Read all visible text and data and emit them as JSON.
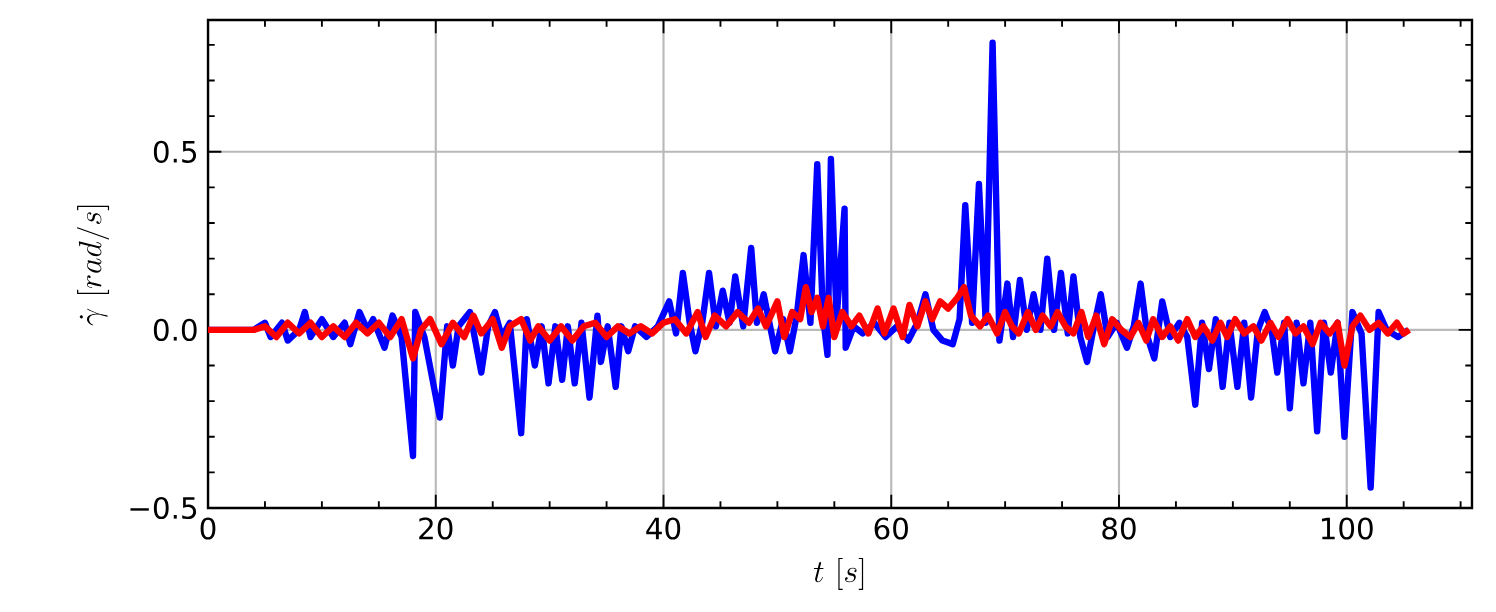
{
  "chart_data": {
    "type": "line",
    "xlabel": "t\\ [s]",
    "ylabel": "\\dot{\\gamma}\\ [rad/s]",
    "xlim": [
      0,
      111
    ],
    "ylim": [
      -0.5,
      0.87
    ],
    "xticks": [
      0,
      {
        "value": 5,
        "label": null
      },
      {
        "value": 10,
        "label": null
      },
      {
        "value": 15,
        "label": null
      },
      20,
      {
        "value": 25,
        "label": null
      },
      {
        "value": 30,
        "label": null
      },
      {
        "value": 35,
        "label": null
      },
      40,
      {
        "value": 45,
        "label": null
      },
      {
        "value": 50,
        "label": null
      },
      {
        "value": 55,
        "label": null
      },
      60,
      {
        "value": 65,
        "label": null
      },
      {
        "value": 70,
        "label": null
      },
      {
        "value": 75,
        "label": null
      },
      80,
      {
        "value": 85,
        "label": null
      },
      {
        "value": 90,
        "label": null
      },
      {
        "value": 95,
        "label": null
      },
      100,
      {
        "value": 105,
        "label": null
      },
      {
        "value": 110,
        "label": null
      }
    ],
    "yticks": [
      {
        "value": -0.5,
        "label": "−0.5"
      },
      {
        "value": -0.4,
        "label": null
      },
      {
        "value": -0.3,
        "label": null
      },
      {
        "value": -0.2,
        "label": null
      },
      {
        "value": -0.1,
        "label": null
      },
      {
        "value": 0,
        "label": "0.0"
      },
      {
        "value": 0.1,
        "label": null
      },
      {
        "value": 0.2,
        "label": null
      },
      {
        "value": 0.3,
        "label": null
      },
      {
        "value": 0.4,
        "label": null
      },
      {
        "value": 0.5,
        "label": "0.5"
      },
      {
        "value": 0.6,
        "label": null
      },
      {
        "value": 0.7,
        "label": null
      },
      {
        "value": 0.8,
        "label": null
      }
    ],
    "grid": true,
    "marker": "none",
    "line_style": "solid",
    "series": [
      {
        "color": "#0000ff",
        "x": [
          0,
          4,
          5,
          5.5,
          6.5,
          7,
          8,
          8.5,
          9,
          10,
          11,
          12,
          12.5,
          13.3,
          14,
          14.5,
          15.5,
          16.2,
          17,
          18,
          18.2,
          19,
          20.35,
          21,
          21.5,
          22,
          23,
          24,
          24.6,
          25.2,
          25.8,
          26.5,
          27.5,
          28,
          28.7,
          29.3,
          29.9,
          30.5,
          31.1,
          31.6,
          32.2,
          32.8,
          33.5,
          34.2,
          34.5,
          35.1,
          35.8,
          36.3,
          36.9,
          37.5,
          38.5,
          39.5,
          40.5,
          41.1,
          41.7,
          42.3,
          42.8,
          43.4,
          44,
          44.6,
          45.2,
          45.8,
          46.3,
          47,
          47.7,
          48.2,
          48.8,
          49.3,
          49.8,
          50.5,
          51.1,
          51.7,
          52.3,
          52.9,
          53.5,
          54,
          54.4,
          54.7,
          55.2,
          55.9,
          56.0,
          56.7,
          57.5,
          58.5,
          59.5,
          60.5,
          61.5,
          62.3,
          63,
          63.7,
          64.5,
          65.4,
          66,
          66.5,
          67.1,
          67.7,
          68.3,
          68.9,
          69.5,
          70.2,
          70.7,
          71.3,
          71.9,
          72.5,
          73.1,
          73.7,
          74.3,
          74.9,
          75.5,
          76,
          76.6,
          77.2,
          77.8,
          78.4,
          79,
          79.8,
          80.7,
          81.3,
          81.9,
          82.5,
          83.1,
          83.8,
          84.5,
          85.3,
          86,
          86.7,
          87.3,
          87.9,
          88.5,
          89.1,
          89.7,
          90.4,
          91,
          91.6,
          92.2,
          92.8,
          93.4,
          93.9,
          94.5,
          95,
          95.6,
          96.2,
          96.8,
          97.4,
          98,
          98.6,
          99.2,
          99.8,
          100.5,
          101.3,
          102.1,
          102.8,
          103.5,
          104.5,
          105.4
        ],
        "values": [
          0,
          0,
          0.02,
          -0.02,
          0.02,
          -0.03,
          0,
          0.05,
          -0.02,
          0.03,
          -0.02,
          0.02,
          -0.04,
          0.05,
          0,
          0.03,
          -0.05,
          0.04,
          -0.02,
          -0.354,
          0.05,
          -0.02,
          -0.246,
          0.01,
          -0.1,
          0.01,
          0.05,
          -0.12,
          0.01,
          0.05,
          -0.02,
          0.02,
          -0.29,
          0.03,
          -0.1,
          0.01,
          -0.15,
          0.01,
          -0.14,
          0.01,
          -0.15,
          0.02,
          -0.19,
          0.04,
          -0.09,
          0.01,
          -0.16,
          0.01,
          -0.06,
          0.01,
          -0.02,
          0.01,
          0.08,
          -0.01,
          0.16,
          0.02,
          -0.06,
          0.02,
          0.16,
          0.01,
          0.11,
          0.02,
          0.15,
          0.01,
          0.23,
          0.02,
          0.1,
          0.02,
          -0.06,
          0.03,
          -0.06,
          0.04,
          0.21,
          0.02,
          0.465,
          0.04,
          -0.07,
          0.48,
          0.03,
          0.34,
          -0.05,
          0.01,
          -0.01,
          0.02,
          -0.02,
          0.01,
          -0.03,
          0.02,
          0.1,
          0,
          -0.03,
          -0.04,
          0.03,
          0.35,
          0.02,
          0.41,
          0.02,
          0.806,
          -0.03,
          0.13,
          -0.02,
          0.14,
          0,
          0.1,
          0,
          0.2,
          0,
          0.16,
          -0.01,
          0.15,
          -0.02,
          -0.09,
          0.01,
          0.1,
          -0.02,
          0.02,
          -0.05,
          0.01,
          0.13,
          -0.02,
          -0.08,
          0.08,
          -0.02,
          0.02,
          -0.02,
          -0.21,
          0.02,
          -0.11,
          0.03,
          -0.16,
          0.02,
          -0.16,
          0.02,
          -0.19,
          0,
          0.05,
          0,
          -0.12,
          0.02,
          -0.22,
          0.02,
          -0.15,
          0.02,
          -0.285,
          0.02,
          -0.12,
          0.02,
          -0.3,
          0.05,
          -0.01,
          -0.443,
          0.05,
          0,
          -0.02,
          0
        ]
      },
      {
        "color": "#ff0000",
        "x": [
          0,
          4,
          5,
          6,
          7,
          8,
          9,
          10,
          11,
          12,
          13,
          14,
          15,
          16,
          17,
          18,
          18.7,
          19.5,
          20.5,
          21.5,
          22.5,
          23.3,
          24,
          25,
          25.8,
          26.5,
          27.5,
          28.3,
          29,
          30,
          31,
          32,
          33,
          34,
          35,
          36,
          37,
          38,
          39,
          40,
          41,
          42,
          43,
          43.7,
          44.5,
          45.5,
          46.5,
          47.5,
          48.3,
          49,
          50,
          50.6,
          51.3,
          52,
          52.5,
          53,
          53.5,
          54,
          54.5,
          55,
          55.7,
          56.5,
          57.2,
          58,
          58.8,
          59.4,
          60.2,
          61,
          61.6,
          62.3,
          63,
          63.6,
          64.3,
          65,
          65.8,
          66.4,
          67,
          67.8,
          68.5,
          69.3,
          70,
          70.6,
          71.2,
          72,
          72.7,
          73.3,
          74,
          74.6,
          75.3,
          76,
          76.7,
          77.3,
          78,
          78.7,
          79.4,
          80.2,
          81,
          81.7,
          82.4,
          83,
          83.8,
          84.5,
          85.2,
          86,
          86.7,
          87.4,
          88.2,
          88.9,
          89.5,
          90.2,
          91,
          91.8,
          92.5,
          93.3,
          94,
          94.8,
          95.5,
          96.2,
          97,
          97.7,
          98.5,
          99.2,
          99.8,
          100.5,
          101.2,
          102,
          102.8,
          103.6,
          104.4,
          105,
          105.5
        ],
        "values": [
          0,
          0,
          0.01,
          -0.02,
          0.02,
          -0.01,
          0.02,
          -0.02,
          0.01,
          -0.02,
          0.02,
          -0.01,
          0.02,
          -0.02,
          0.03,
          -0.08,
          0,
          0.03,
          -0.04,
          0.02,
          -0.02,
          0.04,
          -0.01,
          0.03,
          -0.05,
          0.01,
          0.03,
          -0.03,
          0.01,
          -0.03,
          0.01,
          -0.03,
          0.01,
          0.02,
          -0.02,
          0.01,
          -0.01,
          0.01,
          -0.01,
          0.02,
          0.03,
          -0.01,
          0.05,
          -0.02,
          0.04,
          0.01,
          0.05,
          0.02,
          0.06,
          0.01,
          0.08,
          -0.02,
          0.05,
          0.03,
          0.12,
          0.05,
          0.09,
          0.01,
          0.09,
          -0.02,
          0.05,
          0.01,
          0.04,
          -0.01,
          0.06,
          -0.01,
          0.06,
          -0.02,
          0.07,
          0.01,
          0.08,
          0.03,
          0.08,
          0.06,
          0.09,
          0.12,
          0.04,
          0.01,
          0.04,
          -0.01,
          0.05,
          0.01,
          -0.01,
          0.05,
          0,
          0.04,
          0.01,
          0.05,
          0.01,
          -0.01,
          0.05,
          -0.02,
          0.04,
          -0.04,
          0.03,
          0,
          -0.02,
          0.02,
          -0.03,
          0.03,
          -0.02,
          0.01,
          -0.03,
          0.03,
          -0.02,
          0.01,
          -0.03,
          0.02,
          -0.02,
          0.03,
          -0.01,
          0.01,
          -0.03,
          0.02,
          -0.02,
          0.03,
          -0.01,
          0.01,
          -0.04,
          0.02,
          -0.01,
          0.02,
          -0.1,
          0.01,
          0.04,
          0,
          0.02,
          -0.01,
          0.02,
          -0.01,
          0
        ]
      }
    ]
  }
}
